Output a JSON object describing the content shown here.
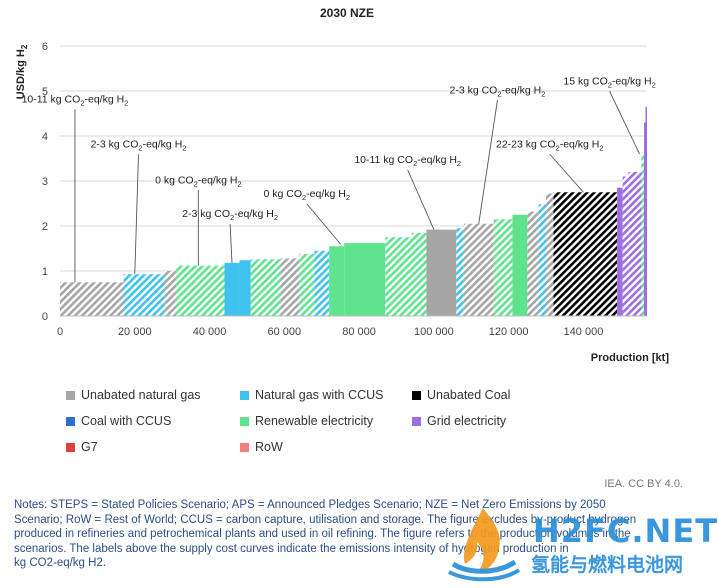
{
  "chart_data": {
    "type": "bar",
    "subtype": "supply-cost-curve",
    "title": "2030 NZE",
    "ylabel": "USD/kg H2",
    "xlabel": "Production [kt]",
    "xlim": [
      0,
      157000
    ],
    "ylim": [
      0,
      6
    ],
    "yticks": [
      0,
      1,
      2,
      3,
      4,
      5,
      6
    ],
    "xticks": [
      0,
      20000,
      40000,
      60000,
      80000,
      100000,
      120000,
      140000
    ],
    "xtick_labels": [
      "0",
      "20 000",
      "40 000",
      "60 000",
      "80 000",
      "100 000",
      "120 000",
      "140 000"
    ],
    "grid": "horizontal",
    "legend_position": "bottom",
    "legend": [
      {
        "key": "ung",
        "label": "Unabated natural gas",
        "color": "#a6a6a6"
      },
      {
        "key": "ngc",
        "label": "Natural gas with CCUS",
        "color": "#3fc3ee"
      },
      {
        "key": "coal",
        "label": "Unabated Coal",
        "color": "#000000"
      },
      {
        "key": "coalc",
        "label": "Coal with CCUS",
        "color": "#2f6fd0"
      },
      {
        "key": "ren",
        "label": "Renewable electricity",
        "color": "#5fe38f"
      },
      {
        "key": "grid",
        "label": "Grid electricity",
        "color": "#9b6fe0"
      },
      {
        "key": "g7",
        "label": "G7",
        "color": "#e0403d"
      },
      {
        "key": "row",
        "label": "RoW",
        "color": "#f08080"
      }
    ],
    "segments": [
      {
        "tech": "ung",
        "hatch": true,
        "x0": 0,
        "x1": 17000,
        "y": 0.75
      },
      {
        "tech": "ngc",
        "hatch": true,
        "x0": 17000,
        "x1": 28000,
        "y": 0.93
      },
      {
        "tech": "ung",
        "hatch": true,
        "x0": 28000,
        "x1": 31000,
        "y": 1.0
      },
      {
        "tech": "ren",
        "hatch": true,
        "x0": 31000,
        "x1": 44000,
        "y": 1.12
      },
      {
        "tech": "ngc",
        "hatch": false,
        "x0": 44000,
        "x1": 48000,
        "y": 1.18
      },
      {
        "tech": "ngc",
        "hatch": false,
        "x0": 48000,
        "x1": 51000,
        "y": 1.24
      },
      {
        "tech": "ren",
        "hatch": true,
        "x0": 51000,
        "x1": 59000,
        "y": 1.26
      },
      {
        "tech": "ung",
        "hatch": true,
        "x0": 59000,
        "x1": 64000,
        "y": 1.28
      },
      {
        "tech": "ren",
        "hatch": true,
        "x0": 64000,
        "x1": 68000,
        "y": 1.38
      },
      {
        "tech": "ngc",
        "hatch": true,
        "x0": 68000,
        "x1": 72000,
        "y": 1.45
      },
      {
        "tech": "ren",
        "hatch": false,
        "x0": 72000,
        "x1": 76000,
        "y": 1.55
      },
      {
        "tech": "ren",
        "hatch": false,
        "x0": 76000,
        "x1": 87000,
        "y": 1.62
      },
      {
        "tech": "ren",
        "hatch": true,
        "x0": 87000,
        "x1": 94000,
        "y": 1.75
      },
      {
        "tech": "ren",
        "hatch": true,
        "x0": 94000,
        "x1": 98000,
        "y": 1.85
      },
      {
        "tech": "ung",
        "hatch": false,
        "x0": 98000,
        "x1": 106000,
        "y": 1.92
      },
      {
        "tech": "ngc",
        "hatch": true,
        "x0": 106000,
        "x1": 108000,
        "y": 1.95
      },
      {
        "tech": "ung",
        "hatch": true,
        "x0": 108000,
        "x1": 116000,
        "y": 2.05
      },
      {
        "tech": "ren",
        "hatch": true,
        "x0": 116000,
        "x1": 121000,
        "y": 2.15
      },
      {
        "tech": "ren",
        "hatch": false,
        "x0": 121000,
        "x1": 125000,
        "y": 2.25
      },
      {
        "tech": "ung",
        "hatch": true,
        "x0": 125000,
        "x1": 128000,
        "y": 2.32
      },
      {
        "tech": "ngc",
        "hatch": true,
        "x0": 128000,
        "x1": 130000,
        "y": 2.48
      },
      {
        "tech": "ung",
        "hatch": true,
        "x0": 130000,
        "x1": 132000,
        "y": 2.72
      },
      {
        "tech": "coal",
        "hatch": true,
        "x0": 132000,
        "x1": 149000,
        "y": 2.75
      },
      {
        "tech": "grid",
        "hatch": false,
        "x0": 149000,
        "x1": 150500,
        "y": 2.85
      },
      {
        "tech": "grid",
        "hatch": true,
        "x0": 150500,
        "x1": 152000,
        "y": 3.1
      },
      {
        "tech": "grid",
        "hatch": true,
        "x0": 152000,
        "x1": 155500,
        "y": 3.2
      },
      {
        "tech": "ren",
        "hatch": true,
        "x0": 155500,
        "x1": 156200,
        "y": 3.6
      },
      {
        "tech": "grid",
        "hatch": false,
        "x0": 156200,
        "x1": 156600,
        "y": 4.3
      },
      {
        "tech": "grid",
        "hatch": false,
        "x0": 156600,
        "x1": 157000,
        "y": 4.65
      }
    ],
    "annotations": [
      {
        "text": "10-11 kg CO",
        "sub": "2",
        "tail": "-eq/kg H",
        "sub2": "2",
        "label_x": 4000,
        "label_y": 4.75,
        "point_x": 4000,
        "point_y": 0.75
      },
      {
        "text": "2-3 kg CO",
        "sub": "2",
        "tail": "-eq/kg H",
        "sub2": "2",
        "label_x": 21000,
        "label_y": 3.75,
        "point_x": 20000,
        "point_y": 0.93
      },
      {
        "text": "0 kg CO",
        "sub": "2",
        "tail": "-eq/kg H",
        "sub2": "2",
        "label_x": 37000,
        "label_y": 2.95,
        "point_x": 37000,
        "point_y": 1.12
      },
      {
        "text": "2-3 kg CO",
        "sub": "2",
        "tail": "-eq/kg H",
        "sub2": "2",
        "label_x": 45500,
        "label_y": 2.2,
        "point_x": 46000,
        "point_y": 1.18
      },
      {
        "text": "0 kg CO",
        "sub": "2",
        "tail": "-eq/kg H",
        "sub2": "2",
        "label_x": 66000,
        "label_y": 2.65,
        "point_x": 75000,
        "point_y": 1.6
      },
      {
        "text": "10-11 kg CO",
        "sub": "2",
        "tail": "-eq/kg H",
        "sub2": "2",
        "label_x": 93000,
        "label_y": 3.4,
        "point_x": 100000,
        "point_y": 1.92
      },
      {
        "text": "2-3 kg CO",
        "sub": "2",
        "tail": "-eq/kg H",
        "sub2": "2",
        "label_x": 117000,
        "label_y": 4.95,
        "point_x": 112000,
        "point_y": 2.05
      },
      {
        "text": "22-23 kg CO",
        "sub": "2",
        "tail": "-eq/kg H",
        "sub2": "2",
        "label_x": 131000,
        "label_y": 3.75,
        "point_x": 140000,
        "point_y": 2.75
      },
      {
        "text": "15 kg CO",
        "sub": "2",
        "tail": "-eq/kg H",
        "sub2": "2",
        "label_x": 147000,
        "label_y": 5.15,
        "point_x": 155000,
        "point_y": 3.6
      }
    ]
  },
  "credit": "IEA. CC BY 4.0.",
  "notes": [
    "Notes: STEPS = Stated Policies Scenario; APS = Announced Pledges Scenario; NZE = Net Zero Emissions by 2050",
    "Scenario; RoW = Rest of World; CCUS = carbon capture, utilisation and storage. The figure excludes by-product hydrogen",
    "produced in refineries and petrochemical plants and used in oil refining. The figure refers to the production volumes in the",
    "scenarios. The labels above the supply cost curves indicate the emissions intensity of hydrogen production in",
    "kg CO2-eq/kg H2."
  ],
  "watermark": {
    "logo_text": "H2FC.NET",
    "sub_text": "氢能与燃料电池网",
    "colors": {
      "orange": "#f39a1e",
      "blue": "#2a8fd8"
    }
  }
}
